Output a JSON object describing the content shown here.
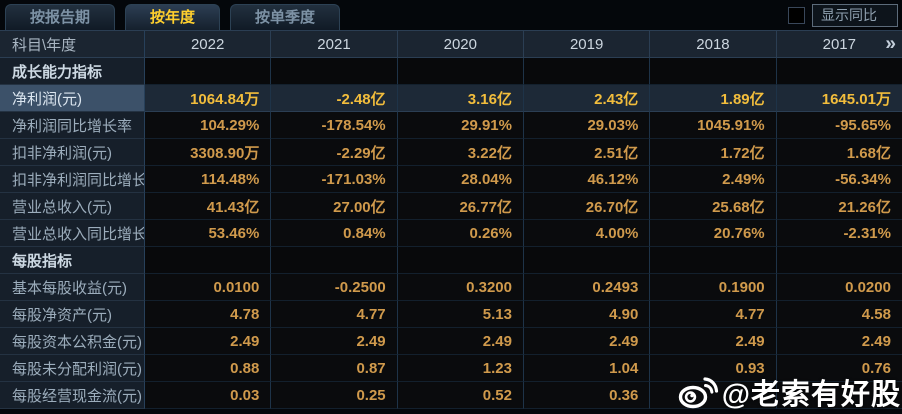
{
  "tabs": [
    {
      "label": "按报告期",
      "active": false
    },
    {
      "label": "按年度",
      "active": true
    },
    {
      "label": "按单季度",
      "active": false
    }
  ],
  "controls": {
    "show_yoy_label": "显示同比"
  },
  "table": {
    "corner_label": "科目\\年度",
    "years": [
      "2022",
      "2021",
      "2020",
      "2019",
      "2018",
      "2017"
    ],
    "more_years_glyph": "»",
    "rows": [
      {
        "type": "section",
        "label": "成长能力指标",
        "values": [
          "",
          "",
          "",
          "",
          "",
          ""
        ]
      },
      {
        "type": "data",
        "highlight": true,
        "label": "净利润(元)",
        "values": [
          "1064.84万",
          "-2.48亿",
          "3.16亿",
          "2.43亿",
          "1.89亿",
          "1645.01万"
        ]
      },
      {
        "type": "data",
        "label": "净利润同比增长率",
        "values": [
          "104.29%",
          "-178.54%",
          "29.91%",
          "29.03%",
          "1045.91%",
          "-95.65%"
        ]
      },
      {
        "type": "data",
        "label": "扣非净利润(元)",
        "values": [
          "3308.90万",
          "-2.29亿",
          "3.22亿",
          "2.51亿",
          "1.72亿",
          "1.68亿"
        ]
      },
      {
        "type": "data",
        "label": "扣非净利润同比增长率",
        "values": [
          "114.48%",
          "-171.03%",
          "28.04%",
          "46.12%",
          "2.49%",
          "-56.34%"
        ]
      },
      {
        "type": "data",
        "label": "营业总收入(元)",
        "values": [
          "41.43亿",
          "27.00亿",
          "26.77亿",
          "26.70亿",
          "25.68亿",
          "21.26亿"
        ]
      },
      {
        "type": "data",
        "label": "营业总收入同比增长率",
        "values": [
          "53.46%",
          "0.84%",
          "0.26%",
          "4.00%",
          "20.76%",
          "-2.31%"
        ]
      },
      {
        "type": "section",
        "label": "每股指标",
        "values": [
          "",
          "",
          "",
          "",
          "",
          ""
        ]
      },
      {
        "type": "data",
        "label": "基本每股收益(元)",
        "values": [
          "0.0100",
          "-0.2500",
          "0.3200",
          "0.2493",
          "0.1900",
          "0.0200"
        ]
      },
      {
        "type": "data",
        "label": "每股净资产(元)",
        "values": [
          "4.78",
          "4.77",
          "5.13",
          "4.90",
          "4.77",
          "4.58"
        ]
      },
      {
        "type": "data",
        "label": "每股资本公积金(元)",
        "values": [
          "2.49",
          "2.49",
          "2.49",
          "2.49",
          "2.49",
          "2.49"
        ]
      },
      {
        "type": "data",
        "label": "每股未分配利润(元)",
        "values": [
          "0.88",
          "0.87",
          "1.23",
          "1.04",
          "0.93",
          "0.76"
        ]
      },
      {
        "type": "data",
        "label": "每股经营现金流(元)",
        "values": [
          "0.03",
          "0.25",
          "0.52",
          "0.36",
          "",
          ""
        ]
      }
    ]
  },
  "watermark": {
    "text": "@老索有好股"
  },
  "colors": {
    "accent_gold": "#ffd02e",
    "value_orange": "#d09a4c",
    "highlight_value": "#f2bd3c",
    "grid_line": "#27405a",
    "header_bg": "#1b2531",
    "label_bg": "#161f2a",
    "highlight_label_bg": "#3c5169",
    "highlight_cell_bg": "#1d2937"
  }
}
